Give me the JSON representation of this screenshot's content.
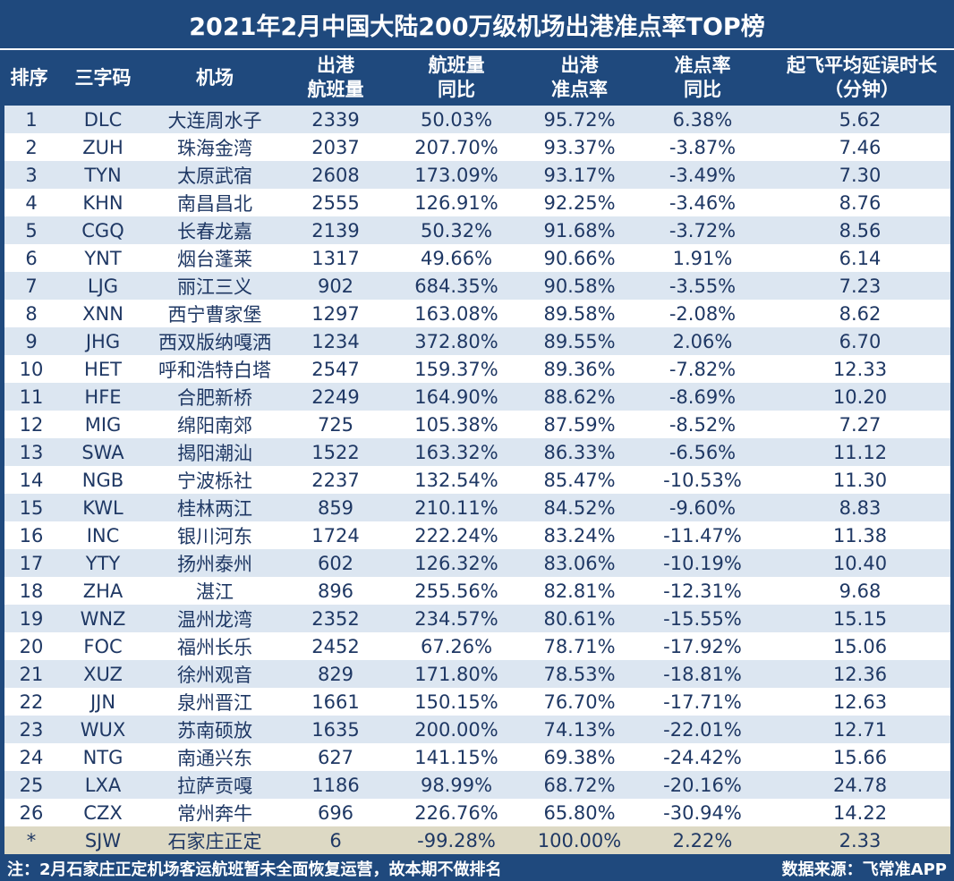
{
  "title": "2021年2月中国大陆200万级机场出港准点率TOP榜",
  "headers": {
    "rank": [
      "排序"
    ],
    "code": [
      "三字码"
    ],
    "airport": [
      "机场"
    ],
    "flights": [
      "出港",
      "航班量"
    ],
    "flights_yoy": [
      "航班量",
      "同比"
    ],
    "ontime": [
      "出港",
      "准点率"
    ],
    "ontime_yoy": [
      "准点率",
      "同比"
    ],
    "delay": [
      "起飞平均延误时长",
      "（分钟）"
    ]
  },
  "rows": [
    {
      "rank": "1",
      "code": "DLC",
      "airport": "大连周水子",
      "flights": "2339",
      "flights_yoy": "50.03%",
      "ontime": "95.72%",
      "ontime_yoy": "6.38%",
      "delay": "5.62"
    },
    {
      "rank": "2",
      "code": "ZUH",
      "airport": "珠海金湾",
      "flights": "2037",
      "flights_yoy": "207.70%",
      "ontime": "93.37%",
      "ontime_yoy": "-3.87%",
      "delay": "7.46"
    },
    {
      "rank": "3",
      "code": "TYN",
      "airport": "太原武宿",
      "flights": "2608",
      "flights_yoy": "173.09%",
      "ontime": "93.17%",
      "ontime_yoy": "-3.49%",
      "delay": "7.30"
    },
    {
      "rank": "4",
      "code": "KHN",
      "airport": "南昌昌北",
      "flights": "2555",
      "flights_yoy": "126.91%",
      "ontime": "92.25%",
      "ontime_yoy": "-3.46%",
      "delay": "8.76"
    },
    {
      "rank": "5",
      "code": "CGQ",
      "airport": "长春龙嘉",
      "flights": "2139",
      "flights_yoy": "50.32%",
      "ontime": "91.68%",
      "ontime_yoy": "-3.72%",
      "delay": "8.56"
    },
    {
      "rank": "6",
      "code": "YNT",
      "airport": "烟台蓬莱",
      "flights": "1317",
      "flights_yoy": "49.66%",
      "ontime": "90.66%",
      "ontime_yoy": "1.91%",
      "delay": "6.14"
    },
    {
      "rank": "7",
      "code": "LJG",
      "airport": "丽江三义",
      "flights": "902",
      "flights_yoy": "684.35%",
      "ontime": "90.58%",
      "ontime_yoy": "-3.55%",
      "delay": "7.23"
    },
    {
      "rank": "8",
      "code": "XNN",
      "airport": "西宁曹家堡",
      "flights": "1297",
      "flights_yoy": "163.08%",
      "ontime": "89.58%",
      "ontime_yoy": "-2.08%",
      "delay": "8.62"
    },
    {
      "rank": "9",
      "code": "JHG",
      "airport": "西双版纳嘎洒",
      "flights": "1234",
      "flights_yoy": "372.80%",
      "ontime": "89.55%",
      "ontime_yoy": "2.06%",
      "delay": "6.70"
    },
    {
      "rank": "10",
      "code": "HET",
      "airport": "呼和浩特白塔",
      "flights": "2547",
      "flights_yoy": "159.37%",
      "ontime": "89.36%",
      "ontime_yoy": "-7.82%",
      "delay": "12.33"
    },
    {
      "rank": "11",
      "code": "HFE",
      "airport": "合肥新桥",
      "flights": "2249",
      "flights_yoy": "164.90%",
      "ontime": "88.62%",
      "ontime_yoy": "-8.69%",
      "delay": "10.20"
    },
    {
      "rank": "12",
      "code": "MIG",
      "airport": "绵阳南郊",
      "flights": "725",
      "flights_yoy": "105.38%",
      "ontime": "87.59%",
      "ontime_yoy": "-8.52%",
      "delay": "7.27"
    },
    {
      "rank": "13",
      "code": "SWA",
      "airport": "揭阳潮汕",
      "flights": "1522",
      "flights_yoy": "163.32%",
      "ontime": "86.33%",
      "ontime_yoy": "-6.56%",
      "delay": "11.12"
    },
    {
      "rank": "14",
      "code": "NGB",
      "airport": "宁波栎社",
      "flights": "2237",
      "flights_yoy": "132.54%",
      "ontime": "85.47%",
      "ontime_yoy": "-10.53%",
      "delay": "11.30"
    },
    {
      "rank": "15",
      "code": "KWL",
      "airport": "桂林两江",
      "flights": "859",
      "flights_yoy": "210.11%",
      "ontime": "84.52%",
      "ontime_yoy": "-9.60%",
      "delay": "8.83"
    },
    {
      "rank": "16",
      "code": "INC",
      "airport": "银川河东",
      "flights": "1724",
      "flights_yoy": "222.24%",
      "ontime": "83.24%",
      "ontime_yoy": "-11.47%",
      "delay": "11.38"
    },
    {
      "rank": "17",
      "code": "YTY",
      "airport": "扬州泰州",
      "flights": "602",
      "flights_yoy": "126.32%",
      "ontime": "83.06%",
      "ontime_yoy": "-10.19%",
      "delay": "10.40"
    },
    {
      "rank": "18",
      "code": "ZHA",
      "airport": "湛江",
      "flights": "896",
      "flights_yoy": "255.56%",
      "ontime": "82.81%",
      "ontime_yoy": "-12.31%",
      "delay": "9.68"
    },
    {
      "rank": "19",
      "code": "WNZ",
      "airport": "温州龙湾",
      "flights": "2352",
      "flights_yoy": "234.57%",
      "ontime": "80.61%",
      "ontime_yoy": "-15.55%",
      "delay": "15.15"
    },
    {
      "rank": "20",
      "code": "FOC",
      "airport": "福州长乐",
      "flights": "2452",
      "flights_yoy": "67.26%",
      "ontime": "78.71%",
      "ontime_yoy": "-17.92%",
      "delay": "15.06"
    },
    {
      "rank": "21",
      "code": "XUZ",
      "airport": "徐州观音",
      "flights": "829",
      "flights_yoy": "171.80%",
      "ontime": "78.53%",
      "ontime_yoy": "-18.81%",
      "delay": "12.36"
    },
    {
      "rank": "22",
      "code": "JJN",
      "airport": "泉州晋江",
      "flights": "1661",
      "flights_yoy": "150.15%",
      "ontime": "76.70%",
      "ontime_yoy": "-17.71%",
      "delay": "12.63"
    },
    {
      "rank": "23",
      "code": "WUX",
      "airport": "苏南硕放",
      "flights": "1635",
      "flights_yoy": "200.00%",
      "ontime": "74.13%",
      "ontime_yoy": "-22.01%",
      "delay": "12.71"
    },
    {
      "rank": "24",
      "code": "NTG",
      "airport": "南通兴东",
      "flights": "627",
      "flights_yoy": "141.15%",
      "ontime": "69.38%",
      "ontime_yoy": "-24.42%",
      "delay": "15.66"
    },
    {
      "rank": "25",
      "code": "LXA",
      "airport": "拉萨贡嘎",
      "flights": "1186",
      "flights_yoy": "98.99%",
      "ontime": "68.72%",
      "ontime_yoy": "-20.16%",
      "delay": "24.78"
    },
    {
      "rank": "26",
      "code": "CZX",
      "airport": "常州奔牛",
      "flights": "696",
      "flights_yoy": "226.76%",
      "ontime": "65.80%",
      "ontime_yoy": "-30.94%",
      "delay": "14.22"
    },
    {
      "rank": "*",
      "code": "SJW",
      "airport": "石家庄正定",
      "flights": "6",
      "flights_yoy": "-99.28%",
      "ontime": "100.00%",
      "ontime_yoy": "2.22%",
      "delay": "2.33",
      "special": true
    }
  ],
  "footer": {
    "note": "注：2月石家庄正定机场客运航班暂未全面恢复运营，故本期不做排名",
    "source": "数据来源：飞常准APP"
  },
  "colors": {
    "frame": "#1f497d",
    "row_odd": "#dce6f1",
    "row_even": "#ffffff",
    "row_special": "#ddd9c4",
    "cell_text": "#1f3864"
  }
}
